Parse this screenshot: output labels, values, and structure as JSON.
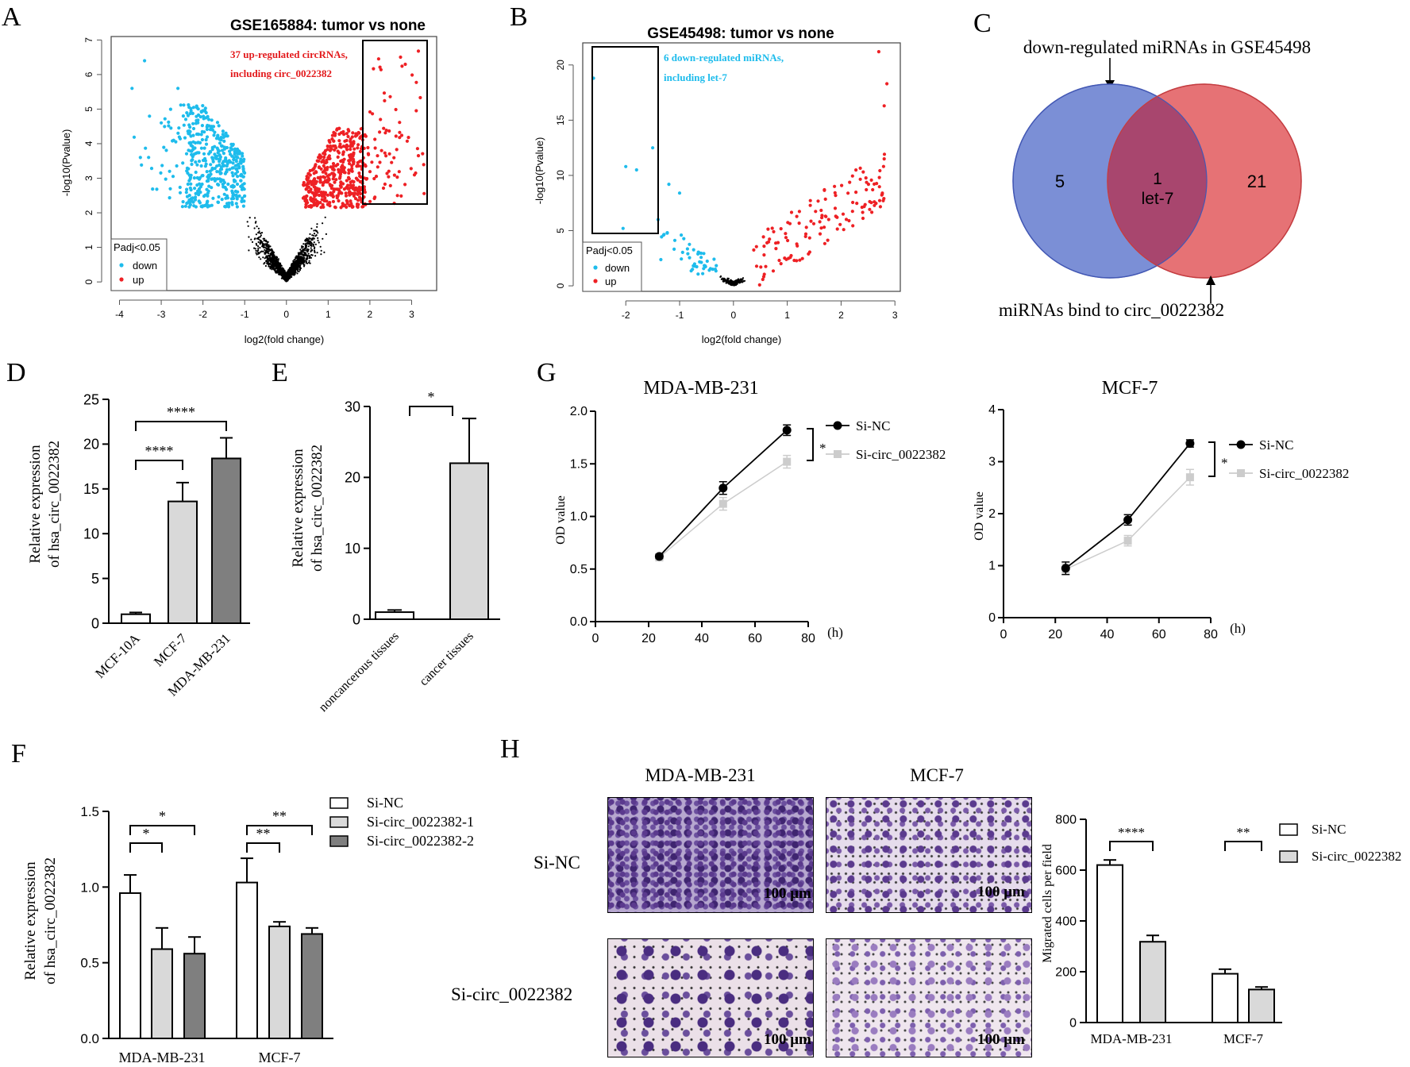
{
  "panels": {
    "A": "A",
    "B": "B",
    "C": "C",
    "D": "D",
    "E": "E",
    "F": "F",
    "G": "G",
    "H": "H"
  },
  "chart_data": [
    {
      "id": "A",
      "type": "scatter",
      "title": "GSE165884: tumor vs none",
      "xlabel": "log2(fold change)",
      "ylabel": "-log10(Pvalue)",
      "xlim": [
        -4.2,
        3.6
      ],
      "ylim": [
        -0.25,
        7.1
      ],
      "xticks": [
        -4,
        -3,
        -2,
        -1,
        0,
        1,
        2,
        3
      ],
      "yticks": [
        0,
        1,
        2,
        3,
        4,
        5,
        6,
        7
      ],
      "threshold": 2.1,
      "legend": {
        "title": "Padj<0.05",
        "entries": [
          "down",
          "up"
        ]
      },
      "annotation": [
        "37 up-regulated circRNAs,",
        "including circ_0022382"
      ],
      "colors": {
        "down": "#1ebcec",
        "up": "#ee2024",
        "ns": "#000000",
        "note": "#e31a1c"
      }
    },
    {
      "id": "B",
      "type": "scatter",
      "title": "GSE45498: tumor vs none",
      "xlabel": "log2(fold change)",
      "ylabel": "-log10(Pvalue)",
      "xlim": [
        -2.8,
        3.1
      ],
      "ylim": [
        -0.5,
        22
      ],
      "xticks": [
        -2,
        -1,
        0,
        1,
        2,
        3
      ],
      "yticks": [
        0,
        5,
        10,
        15,
        20
      ],
      "legend": {
        "title": "Padj<0.05",
        "entries": [
          "down",
          "up"
        ]
      },
      "annotation": [
        "6 down-regulated miRNAs,",
        "including let-7"
      ],
      "colors": {
        "down": "#1ebcec",
        "up": "#ee2024",
        "ns": "#000000",
        "note": "#1ebcec"
      }
    },
    {
      "id": "C",
      "type": "venn",
      "sets": [
        {
          "name": "down-regulated miRNAs in GSE45498",
          "only": "5",
          "color": "#7b8fd6"
        },
        {
          "name": "miRNAs bind to circ_0022382",
          "only": "21",
          "color": "#e67275"
        }
      ],
      "overlap": {
        "count": "1",
        "label": "let-7"
      }
    },
    {
      "id": "D",
      "type": "bar",
      "categories": [
        "MCF-10A",
        "MCF-7",
        "MDA-MB-231"
      ],
      "values": [
        1.0,
        13.6,
        18.4
      ],
      "errors": [
        0.2,
        2.1,
        2.3
      ],
      "colors": [
        "#ffffff",
        "#d9d9d9",
        "#7f7f7f"
      ],
      "ylabel": [
        "Relative expression",
        "of  hsa_circ_0022382"
      ],
      "ylim": [
        0,
        25
      ],
      "yticks": [
        0,
        5,
        10,
        15,
        20,
        25
      ],
      "significance": [
        {
          "pair": [
            0,
            1
          ],
          "label": "****"
        },
        {
          "pair": [
            0,
            2
          ],
          "label": "****"
        }
      ]
    },
    {
      "id": "E",
      "type": "bar",
      "categories": [
        "noncancerous tissues",
        "cancer tissues"
      ],
      "values": [
        1.0,
        22.0
      ],
      "errors": [
        0.3,
        6.3
      ],
      "colors": [
        "#ffffff",
        "#d9d9d9"
      ],
      "ylabel": [
        "Relative expression",
        "of  hsa_circ_0022382"
      ],
      "ylim": [
        0,
        30
      ],
      "yticks": [
        0,
        10,
        20,
        30
      ],
      "significance": [
        {
          "pair": [
            0,
            1
          ],
          "label": "*"
        }
      ]
    },
    {
      "id": "F",
      "type": "bar",
      "categories": [
        "MDA-MB-231",
        "MCF-7"
      ],
      "series": [
        {
          "name": "Si-NC",
          "values": [
            0.96,
            1.03
          ],
          "errors": [
            0.12,
            0.16
          ],
          "color": "#ffffff"
        },
        {
          "name": "Si-circ_0022382-1",
          "values": [
            0.59,
            0.74
          ],
          "errors": [
            0.14,
            0.03
          ],
          "color": "#d9d9d9"
        },
        {
          "name": "Si-circ_0022382-2",
          "values": [
            0.56,
            0.69
          ],
          "errors": [
            0.11,
            0.04
          ],
          "color": "#7f7f7f"
        }
      ],
      "ylabel": [
        "Relative expression",
        "of  hsa_circ_0022382"
      ],
      "ylim": [
        0,
        1.5
      ],
      "yticks": [
        "0.0",
        "0.5",
        "1.0",
        "1.5"
      ],
      "significance": [
        {
          "group": 0,
          "pair": [
            0,
            1
          ],
          "label": "*"
        },
        {
          "group": 0,
          "pair": [
            0,
            2
          ],
          "label": "*"
        },
        {
          "group": 1,
          "pair": [
            0,
            1
          ],
          "label": "**"
        },
        {
          "group": 1,
          "pair": [
            0,
            2
          ],
          "label": "**"
        }
      ]
    },
    {
      "id": "G1",
      "type": "line",
      "title": "MDA-MB-231",
      "x": [
        24,
        48,
        72
      ],
      "series": [
        {
          "name": "Si-NC",
          "values": [
            0.62,
            1.27,
            1.82
          ],
          "errors": [
            0.02,
            0.06,
            0.05
          ],
          "color": "#000000"
        },
        {
          "name": "Si-circ_0022382",
          "values": [
            0.61,
            1.12,
            1.52
          ],
          "errors": [
            0.03,
            0.06,
            0.06
          ],
          "color": "#cccccc"
        }
      ],
      "xlabel": "(h)",
      "ylabel": "OD value",
      "xlim": [
        0,
        80
      ],
      "ylim": [
        0,
        2
      ],
      "xticks": [
        0,
        20,
        40,
        60,
        80
      ],
      "yticks": [
        "0.0",
        "0.5",
        "1.0",
        "1.5",
        "2.0"
      ],
      "significance": "*"
    },
    {
      "id": "G2",
      "type": "line",
      "title": "MCF-7",
      "x": [
        24,
        48,
        72
      ],
      "series": [
        {
          "name": "Si-NC",
          "values": [
            0.95,
            1.88,
            3.35
          ],
          "errors": [
            0.12,
            0.1,
            0.07
          ],
          "color": "#000000"
        },
        {
          "name": "Si-circ_0022382",
          "values": [
            0.93,
            1.48,
            2.7
          ],
          "errors": [
            0.1,
            0.1,
            0.15
          ],
          "color": "#cccccc"
        }
      ],
      "xlabel": "(h)",
      "ylabel": "OD value",
      "xlim": [
        0,
        80
      ],
      "ylim": [
        0,
        4
      ],
      "xticks": [
        0,
        20,
        40,
        60,
        80
      ],
      "yticks": [
        "0",
        "1",
        "2",
        "3",
        "4"
      ],
      "significance": "*"
    },
    {
      "id": "H",
      "type": "bar",
      "categories": [
        "MDA-MB-231",
        "MCF-7"
      ],
      "series": [
        {
          "name": "Si-NC",
          "values": [
            620,
            192
          ],
          "errors": [
            20,
            18
          ],
          "color": "#ffffff"
        },
        {
          "name": "Si-circ_0022382",
          "values": [
            318,
            130
          ],
          "errors": [
            25,
            10
          ],
          "color": "#d9d9d9"
        }
      ],
      "ylabel": "Migrated cells per field",
      "ylim": [
        0,
        800
      ],
      "yticks": [
        0,
        200,
        400,
        600,
        800
      ],
      "significance": [
        {
          "group": 0,
          "label": "****"
        },
        {
          "group": 1,
          "label": "**"
        }
      ]
    }
  ],
  "micrographs": {
    "columns": [
      "MDA-MB-231",
      "MCF-7"
    ],
    "rows": [
      "Si-NC",
      "Si-circ_0022382"
    ],
    "scale_bar": "100 μm"
  }
}
